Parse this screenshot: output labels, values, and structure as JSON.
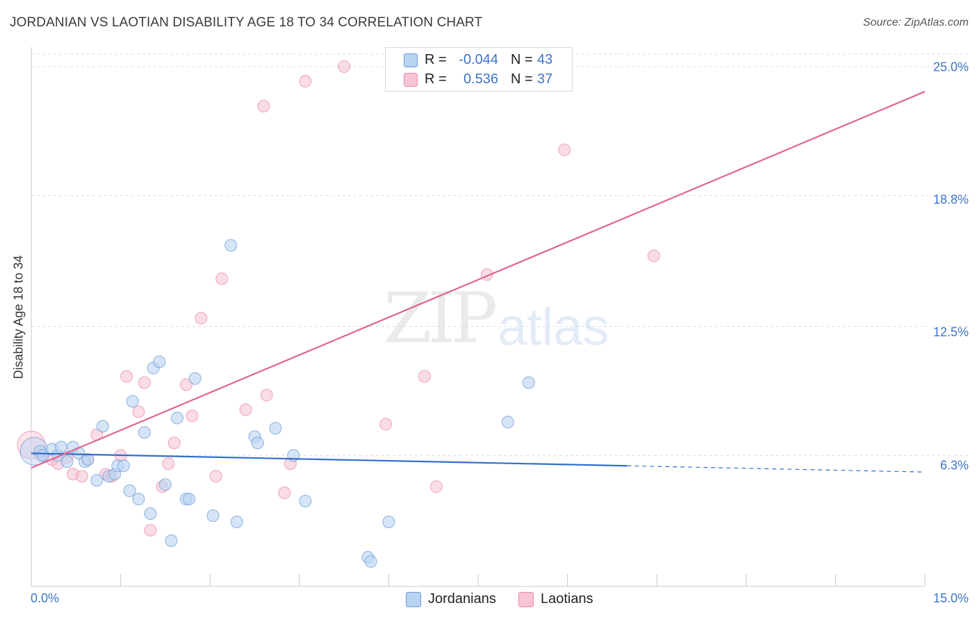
{
  "chart_data": {
    "type": "scatter",
    "title": "JORDANIAN VS LAOTIAN DISABILITY AGE 18 TO 34 CORRELATION CHART",
    "source": "Source: ZipAtlas.com",
    "xlabel": "",
    "ylabel": "Disability Age 18 to 34",
    "xlim": [
      0,
      15
    ],
    "ylim": [
      0,
      25.6
    ],
    "x_tick_labels": [
      "0.0%",
      "15.0%"
    ],
    "y_ticks": [
      6.3,
      12.5,
      18.8,
      25.0
    ],
    "y_tick_labels": [
      "6.3%",
      "12.5%",
      "18.8%",
      "25.0%"
    ],
    "grid": true,
    "watermark": {
      "left": "ZIP",
      "right": "atlas"
    },
    "legend": {
      "r_label": "R =",
      "n_label": "N =",
      "entries": [
        {
          "name": "Jordanians",
          "r": "-0.044",
          "n": "43"
        },
        {
          "name": "Laotians",
          "r": "0.536",
          "n": "37"
        }
      ]
    },
    "colors": {
      "jordanians_fill": "#b9d3f2",
      "jordanians_stroke": "#6b9ad8",
      "jordanians_line": "#2f6fcc",
      "laotians_fill": "#f7c4d3",
      "laotians_stroke": "#e98aa8",
      "laotians_line": "#e0648e",
      "tick_label": "#3d74c8",
      "grid": "#dcdcdc"
    },
    "series": [
      {
        "name": "Jordanians",
        "trend": {
          "x0": 0.0,
          "y0": 6.4,
          "x1": 10.0,
          "y1": 5.8,
          "dashed_to_x": 15.0,
          "dashed_to_y": 5.5
        },
        "points": [
          {
            "x": 0.05,
            "y": 6.5,
            "big": true
          },
          {
            "x": 0.15,
            "y": 6.5
          },
          {
            "x": 0.2,
            "y": 6.3
          },
          {
            "x": 0.35,
            "y": 6.6
          },
          {
            "x": 0.45,
            "y": 6.3
          },
          {
            "x": 0.5,
            "y": 6.7
          },
          {
            "x": 0.6,
            "y": 6.0
          },
          {
            "x": 0.7,
            "y": 6.7
          },
          {
            "x": 0.8,
            "y": 6.4
          },
          {
            "x": 0.9,
            "y": 6.0
          },
          {
            "x": 0.95,
            "y": 6.1
          },
          {
            "x": 1.1,
            "y": 5.1
          },
          {
            "x": 1.2,
            "y": 7.7
          },
          {
            "x": 1.3,
            "y": 5.3
          },
          {
            "x": 1.4,
            "y": 5.4
          },
          {
            "x": 1.45,
            "y": 5.8
          },
          {
            "x": 1.55,
            "y": 5.8
          },
          {
            "x": 1.65,
            "y": 4.6
          },
          {
            "x": 1.7,
            "y": 8.9
          },
          {
            "x": 1.8,
            "y": 4.2
          },
          {
            "x": 1.9,
            "y": 7.4
          },
          {
            "x": 2.0,
            "y": 3.5
          },
          {
            "x": 2.05,
            "y": 10.5
          },
          {
            "x": 2.15,
            "y": 10.8
          },
          {
            "x": 2.25,
            "y": 4.9
          },
          {
            "x": 2.35,
            "y": 2.2
          },
          {
            "x": 2.45,
            "y": 8.1
          },
          {
            "x": 2.6,
            "y": 4.2
          },
          {
            "x": 2.65,
            "y": 4.2
          },
          {
            "x": 2.75,
            "y": 10.0
          },
          {
            "x": 3.05,
            "y": 3.4
          },
          {
            "x": 3.35,
            "y": 16.4
          },
          {
            "x": 3.45,
            "y": 3.1
          },
          {
            "x": 3.75,
            "y": 7.2
          },
          {
            "x": 3.8,
            "y": 6.9
          },
          {
            "x": 4.1,
            "y": 7.6
          },
          {
            "x": 4.4,
            "y": 6.3
          },
          {
            "x": 4.6,
            "y": 4.1
          },
          {
            "x": 5.65,
            "y": 1.4
          },
          {
            "x": 5.7,
            "y": 1.2
          },
          {
            "x": 6.0,
            "y": 3.1
          },
          {
            "x": 8.0,
            "y": 7.9
          },
          {
            "x": 8.35,
            "y": 9.8
          }
        ]
      },
      {
        "name": "Laotians",
        "trend": {
          "x0": 0.0,
          "y0": 5.7,
          "x1": 15.0,
          "y1": 23.8
        },
        "points": [
          {
            "x": 0.0,
            "y": 6.8,
            "big": true
          },
          {
            "x": 0.15,
            "y": 6.3
          },
          {
            "x": 0.35,
            "y": 6.1
          },
          {
            "x": 0.45,
            "y": 5.9
          },
          {
            "x": 0.6,
            "y": 6.2
          },
          {
            "x": 0.7,
            "y": 5.4
          },
          {
            "x": 0.85,
            "y": 5.3
          },
          {
            "x": 0.95,
            "y": 6.1
          },
          {
            "x": 1.1,
            "y": 7.3
          },
          {
            "x": 1.25,
            "y": 5.4
          },
          {
            "x": 1.35,
            "y": 5.3
          },
          {
            "x": 1.5,
            "y": 6.3
          },
          {
            "x": 1.6,
            "y": 10.1
          },
          {
            "x": 1.8,
            "y": 8.4
          },
          {
            "x": 1.9,
            "y": 9.8
          },
          {
            "x": 2.0,
            "y": 2.7
          },
          {
            "x": 2.2,
            "y": 4.8
          },
          {
            "x": 2.3,
            "y": 5.9
          },
          {
            "x": 2.4,
            "y": 6.9
          },
          {
            "x": 2.6,
            "y": 9.7
          },
          {
            "x": 2.7,
            "y": 8.2
          },
          {
            "x": 2.85,
            "y": 12.9
          },
          {
            "x": 3.1,
            "y": 5.3
          },
          {
            "x": 3.2,
            "y": 14.8
          },
          {
            "x": 3.6,
            "y": 8.5
          },
          {
            "x": 3.9,
            "y": 23.1
          },
          {
            "x": 3.95,
            "y": 9.2
          },
          {
            "x": 4.25,
            "y": 4.5
          },
          {
            "x": 4.35,
            "y": 5.9
          },
          {
            "x": 4.6,
            "y": 24.3
          },
          {
            "x": 5.25,
            "y": 25.0
          },
          {
            "x": 5.95,
            "y": 7.8
          },
          {
            "x": 6.6,
            "y": 10.1
          },
          {
            "x": 6.8,
            "y": 4.8
          },
          {
            "x": 7.65,
            "y": 15.0
          },
          {
            "x": 8.95,
            "y": 21.0
          },
          {
            "x": 10.45,
            "y": 15.9
          }
        ]
      }
    ]
  }
}
